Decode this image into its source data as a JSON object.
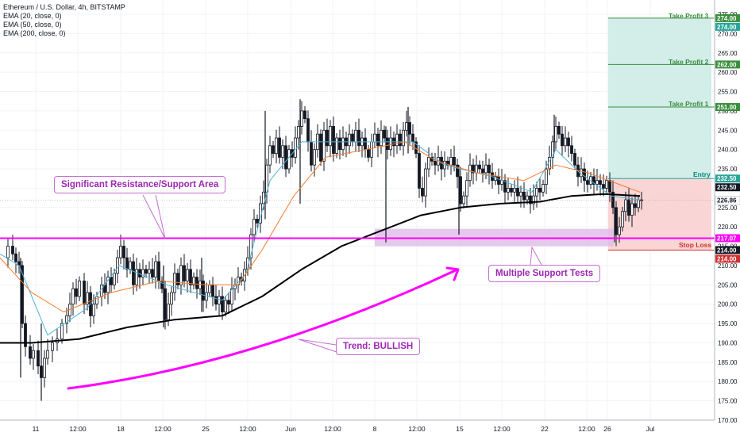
{
  "legend": {
    "symbol": "Ethereum / U.S. Dollar, 4h, BITSTAMP",
    "ema20": "EMA (20, close, 0)",
    "ema50": "EMA (50, close, 0)",
    "ema200": "EMA (200, close, 0)"
  },
  "annotations": {
    "resistance": "Significant Resistance/Support Area",
    "support_tests": "Multiple Support Tests",
    "trend": "Trend: BULLISH",
    "tp3": "Take Profit 3",
    "tp2": "Take Profit 2",
    "tp1": "Take Profit 1",
    "entry": "Entry",
    "stop": "Stop Loss"
  },
  "colors": {
    "up": "#26a69a",
    "down": "#ef5350",
    "candle": "#131722",
    "ema20": "#4fb3d9",
    "ema50": "#f57c30",
    "ema200": "#000000",
    "magenta": "#ff00ff",
    "purple": "#9c27b0",
    "target_zone": "#d3ede9",
    "stop_zone": "#f9d5d5",
    "tp_line": "#388e3c"
  },
  "chart_data": {
    "type": "candlestick",
    "title": "Ethereum / U.S. Dollar, 4h, BITSTAMP",
    "xlabel": "",
    "ylabel": "",
    "ylim": [
      170,
      275
    ],
    "y_ticks": [
      170.0,
      175.0,
      180.0,
      185.0,
      190.0,
      195.0,
      200.0,
      205.0,
      210.0,
      215.0,
      220.0,
      225.0,
      230.0,
      235.0,
      240.0,
      245.0,
      250.0,
      255.0,
      260.0,
      265.0,
      270.0,
      275.0
    ],
    "x_ticks": [
      "11",
      "12:00",
      "18",
      "12:00",
      "25",
      "12:00",
      "Jun",
      "12:00",
      "8",
      "12:00",
      "15",
      "12:00",
      "22",
      "12:00",
      "26",
      "Jul"
    ],
    "price_tags": [
      {
        "value": 274.0,
        "kind": "tp"
      },
      {
        "value": 274.0,
        "kind": "teal"
      },
      {
        "value": 262.0,
        "kind": "tp"
      },
      {
        "value": 251.0,
        "kind": "tp"
      },
      {
        "value": 232.5,
        "kind": "teal"
      },
      {
        "value": 232.5,
        "kind": "dark"
      },
      {
        "value": 226.86,
        "kind": "last"
      },
      {
        "value": 217.07,
        "kind": "magenta"
      },
      {
        "value": 214.0,
        "kind": "dark"
      },
      {
        "value": 214.0,
        "kind": "red"
      }
    ],
    "levels": {
      "take_profit_3": 274.0,
      "take_profit_2": 262.0,
      "take_profit_1": 251.0,
      "entry": 232.5,
      "stop_loss": 214.0,
      "resistance_support": 217.07
    },
    "close_path": [
      [
        0,
        212
      ],
      [
        8,
        215
      ],
      [
        14,
        213
      ],
      [
        18,
        211
      ],
      [
        22,
        210
      ],
      [
        26,
        195
      ],
      [
        30,
        189
      ],
      [
        36,
        186
      ],
      [
        40,
        188
      ],
      [
        46,
        184
      ],
      [
        50,
        181
      ],
      [
        54,
        186
      ],
      [
        58,
        188
      ],
      [
        64,
        190
      ],
      [
        70,
        191
      ],
      [
        76,
        195
      ],
      [
        82,
        197
      ],
      [
        86,
        200
      ],
      [
        90,
        204
      ],
      [
        94,
        202
      ],
      [
        98,
        206
      ],
      [
        104,
        200
      ],
      [
        108,
        203
      ],
      [
        112,
        197
      ],
      [
        116,
        200
      ],
      [
        120,
        202
      ],
      [
        126,
        205
      ],
      [
        130,
        203
      ],
      [
        134,
        207
      ],
      [
        138,
        205
      ],
      [
        142,
        208
      ],
      [
        146,
        212
      ],
      [
        150,
        215
      ],
      [
        154,
        212
      ],
      [
        158,
        209
      ],
      [
        162,
        211
      ],
      [
        166,
        205
      ],
      [
        170,
        209
      ],
      [
        174,
        207
      ],
      [
        178,
        209
      ],
      [
        182,
        208
      ],
      [
        186,
        209
      ],
      [
        190,
        207
      ],
      [
        194,
        211
      ],
      [
        198,
        206
      ],
      [
        202,
        204
      ],
      [
        206,
        196
      ],
      [
        210,
        200
      ],
      [
        214,
        203
      ],
      [
        218,
        208
      ],
      [
        222,
        205
      ],
      [
        226,
        210
      ],
      [
        230,
        206
      ],
      [
        234,
        209
      ],
      [
        238,
        205
      ],
      [
        242,
        207
      ],
      [
        246,
        204
      ],
      [
        250,
        206
      ],
      [
        254,
        201
      ],
      [
        258,
        203
      ],
      [
        262,
        205
      ],
      [
        266,
        202
      ],
      [
        270,
        200
      ],
      [
        274,
        202
      ],
      [
        278,
        198
      ],
      [
        282,
        201
      ],
      [
        286,
        200
      ],
      [
        290,
        204
      ],
      [
        294,
        205
      ],
      [
        298,
        207
      ],
      [
        302,
        206
      ],
      [
        306,
        209
      ],
      [
        310,
        212
      ],
      [
        314,
        218
      ],
      [
        318,
        222
      ],
      [
        322,
        221
      ],
      [
        326,
        226
      ],
      [
        330,
        229
      ],
      [
        334,
        236
      ],
      [
        338,
        241
      ],
      [
        342,
        239
      ],
      [
        346,
        243
      ],
      [
        350,
        238
      ],
      [
        354,
        241
      ],
      [
        358,
        235
      ],
      [
        362,
        240
      ],
      [
        366,
        238
      ],
      [
        370,
        243
      ],
      [
        374,
        246
      ],
      [
        378,
        250
      ],
      [
        382,
        248
      ],
      [
        386,
        242
      ],
      [
        390,
        236
      ],
      [
        394,
        240
      ],
      [
        398,
        244
      ],
      [
        402,
        237
      ],
      [
        406,
        245
      ],
      [
        410,
        241
      ],
      [
        414,
        246
      ],
      [
        418,
        239
      ],
      [
        422,
        243
      ],
      [
        426,
        240
      ],
      [
        430,
        243
      ],
      [
        434,
        241
      ],
      [
        438,
        244
      ],
      [
        442,
        242
      ],
      [
        446,
        245
      ],
      [
        450,
        241
      ],
      [
        454,
        243
      ],
      [
        458,
        240
      ],
      [
        462,
        238
      ],
      [
        466,
        242
      ],
      [
        470,
        244
      ],
      [
        474,
        241
      ],
      [
        478,
        245
      ],
      [
        482,
        243
      ],
      [
        486,
        240
      ],
      [
        490,
        243
      ],
      [
        494,
        241
      ],
      [
        498,
        244
      ],
      [
        502,
        241
      ],
      [
        506,
        245
      ],
      [
        510,
        247
      ],
      [
        514,
        244
      ],
      [
        518,
        242
      ],
      [
        522,
        239
      ],
      [
        526,
        230
      ],
      [
        530,
        228
      ],
      [
        534,
        235
      ],
      [
        538,
        238
      ],
      [
        542,
        237
      ],
      [
        546,
        236
      ],
      [
        550,
        238
      ],
      [
        554,
        235
      ],
      [
        558,
        237
      ],
      [
        562,
        236
      ],
      [
        566,
        238
      ],
      [
        570,
        236
      ],
      [
        574,
        233
      ],
      [
        578,
        226
      ],
      [
        582,
        228
      ],
      [
        586,
        232
      ],
      [
        590,
        236
      ],
      [
        594,
        234
      ],
      [
        598,
        236
      ],
      [
        602,
        235
      ],
      [
        606,
        234
      ],
      [
        610,
        236
      ],
      [
        614,
        234
      ],
      [
        618,
        232
      ],
      [
        622,
        233
      ],
      [
        626,
        231
      ],
      [
        630,
        232
      ],
      [
        634,
        229
      ],
      [
        638,
        230
      ],
      [
        642,
        229
      ],
      [
        646,
        230
      ],
      [
        650,
        228
      ],
      [
        654,
        229
      ],
      [
        658,
        227
      ],
      [
        662,
        228
      ],
      [
        666,
        226
      ],
      [
        670,
        228
      ],
      [
        674,
        230
      ],
      [
        678,
        229
      ],
      [
        682,
        231
      ],
      [
        686,
        235
      ],
      [
        690,
        238
      ],
      [
        694,
        242
      ],
      [
        698,
        246
      ],
      [
        702,
        244
      ],
      [
        706,
        241
      ],
      [
        710,
        243
      ],
      [
        714,
        241
      ],
      [
        718,
        239
      ],
      [
        722,
        236
      ],
      [
        726,
        233
      ],
      [
        730,
        235
      ],
      [
        734,
        232
      ],
      [
        738,
        231
      ],
      [
        742,
        233
      ],
      [
        746,
        231
      ],
      [
        750,
        232
      ],
      [
        754,
        231
      ],
      [
        758,
        230
      ],
      [
        762,
        232
      ],
      [
        766,
        229
      ],
      [
        770,
        225
      ],
      [
        774,
        218
      ],
      [
        778,
        220
      ],
      [
        782,
        224
      ],
      [
        786,
        227
      ],
      [
        790,
        223
      ],
      [
        794,
        226
      ],
      [
        798,
        225
      ],
      [
        802,
        227
      ],
      [
        806,
        227
      ]
    ],
    "wicks": [
      {
        "x": 26,
        "low": 181,
        "high": 212
      },
      {
        "x": 52,
        "low": 175,
        "high": 195
      },
      {
        "x": 206,
        "low": 194,
        "high": 210
      },
      {
        "x": 254,
        "low": 198,
        "high": 212
      },
      {
        "x": 334,
        "low": 222,
        "high": 250
      },
      {
        "x": 378,
        "low": 226,
        "high": 253
      },
      {
        "x": 486,
        "low": 216,
        "high": 246
      },
      {
        "x": 514,
        "low": 239,
        "high": 251
      },
      {
        "x": 578,
        "low": 218,
        "high": 236
      },
      {
        "x": 698,
        "low": 239,
        "high": 249
      },
      {
        "x": 774,
        "low": 216,
        "high": 225
      }
    ],
    "series": [
      {
        "name": "EMA (20, close, 0)",
        "values": [
          [
            0,
            213
          ],
          [
            24,
            210
          ],
          [
            60,
            192
          ],
          [
            110,
            199
          ],
          [
            150,
            210
          ],
          [
            210,
            205
          ],
          [
            280,
            201
          ],
          [
            310,
            208
          ],
          [
            340,
            232
          ],
          [
            380,
            242
          ],
          [
            430,
            242
          ],
          [
            480,
            242
          ],
          [
            520,
            242
          ],
          [
            560,
            236
          ],
          [
            620,
            233
          ],
          [
            670,
            229
          ],
          [
            700,
            240
          ],
          [
            730,
            234
          ],
          [
            770,
            228
          ],
          [
            806,
            227
          ]
        ]
      },
      {
        "name": "EMA (50, close, 0)",
        "values": [
          [
            0,
            212
          ],
          [
            40,
            203
          ],
          [
            80,
            198
          ],
          [
            140,
            203
          ],
          [
            200,
            206
          ],
          [
            260,
            205
          ],
          [
            300,
            205
          ],
          [
            330,
            214
          ],
          [
            370,
            228
          ],
          [
            410,
            238
          ],
          [
            460,
            240
          ],
          [
            510,
            242
          ],
          [
            550,
            237
          ],
          [
            600,
            234
          ],
          [
            660,
            232
          ],
          [
            700,
            236
          ],
          [
            740,
            234
          ],
          [
            780,
            231
          ],
          [
            806,
            229
          ]
        ]
      },
      {
        "name": "EMA (200, close, 0)",
        "values": [
          [
            0,
            190
          ],
          [
            40,
            190
          ],
          [
            100,
            191
          ],
          [
            160,
            194
          ],
          [
            220,
            196
          ],
          [
            280,
            197
          ],
          [
            330,
            202
          ],
          [
            380,
            209
          ],
          [
            430,
            215
          ],
          [
            480,
            219
          ],
          [
            530,
            223
          ],
          [
            580,
            225
          ],
          [
            630,
            226
          ],
          [
            680,
            226.5
          ],
          [
            720,
            228
          ],
          [
            760,
            228.5
          ],
          [
            806,
            228
          ]
        ]
      }
    ],
    "support_zone": {
      "x_start": 472,
      "x_end": 773,
      "low": 215,
      "high": 219.5
    },
    "legend_position": "top-left",
    "grid": true
  }
}
